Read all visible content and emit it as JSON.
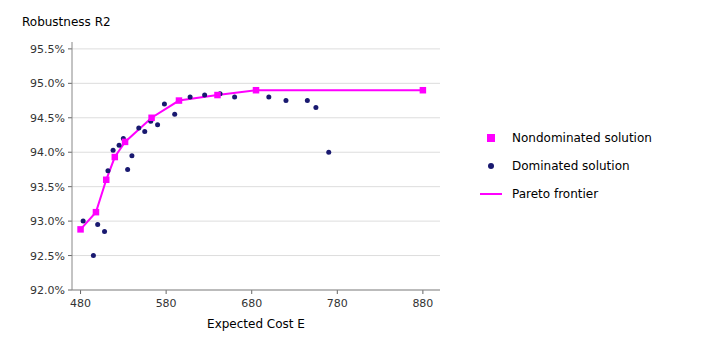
{
  "chart_data": {
    "type": "scatter",
    "xlabel": "Expected Cost E",
    "ylabel": "Robustness R2",
    "series": [
      {
        "name": "Nondominated solution",
        "type": "scatter",
        "marker": "square",
        "color": "#FF00FF",
        "x": [
          480,
          498,
          510,
          520,
          532,
          563,
          595,
          640,
          685,
          880
        ],
        "values": [
          0.9288,
          0.9313,
          0.936,
          0.9393,
          0.9415,
          0.945,
          0.9475,
          0.9483,
          0.949,
          0.949
        ]
      },
      {
        "name": "Dominated solution",
        "type": "scatter",
        "marker": "circle",
        "color": "#191970",
        "x": [
          483,
          495,
          500,
          508,
          512,
          518,
          525,
          530,
          535,
          540,
          548,
          555,
          562,
          570,
          578,
          590,
          608,
          625,
          643,
          660,
          700,
          720,
          745,
          755,
          770
        ],
        "values": [
          0.93,
          0.925,
          0.9295,
          0.9285,
          0.9373,
          0.9403,
          0.941,
          0.942,
          0.9375,
          0.9395,
          0.9435,
          0.943,
          0.9445,
          0.944,
          0.947,
          0.9455,
          0.948,
          0.9483,
          0.9485,
          0.948,
          0.948,
          0.9475,
          0.9475,
          0.9465,
          0.94
        ]
      },
      {
        "name": "Pareto frontier",
        "type": "line",
        "line_style": "solid",
        "color": "#FF00FF",
        "x": [
          480,
          498,
          510,
          520,
          532,
          563,
          595,
          640,
          685,
          880
        ],
        "values": [
          0.9288,
          0.9313,
          0.936,
          0.9393,
          0.9415,
          0.945,
          0.9475,
          0.9483,
          0.949,
          0.949
        ]
      }
    ],
    "xlim": [
      470,
      900
    ],
    "ylim": [
      0.92,
      0.956
    ],
    "xticks": [
      480,
      580,
      680,
      780,
      880
    ],
    "yticks": [
      {
        "value": 0.92,
        "label": "92.0%"
      },
      {
        "value": 0.925,
        "label": "92.5%"
      },
      {
        "value": 0.93,
        "label": "93.0%"
      },
      {
        "value": 0.935,
        "label": "93.5%"
      },
      {
        "value": 0.94,
        "label": "94.0%"
      },
      {
        "value": 0.945,
        "label": "94.5%"
      },
      {
        "value": 0.95,
        "label": "95.0%"
      },
      {
        "value": 0.955,
        "label": "95.5%"
      }
    ],
    "grid": true,
    "legend": "right"
  }
}
